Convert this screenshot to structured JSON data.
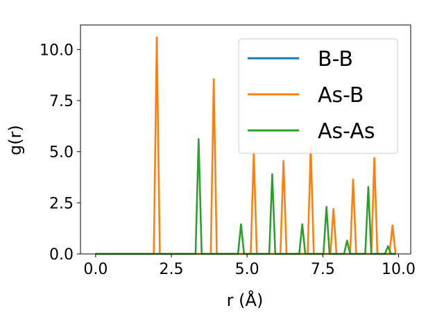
{
  "chart_data": {
    "type": "line",
    "title": "",
    "xlabel": "r (Å)",
    "ylabel": "g(r)",
    "xlim": [
      -0.5,
      10.4
    ],
    "ylim": [
      0,
      11.2
    ],
    "xticks": [
      0.0,
      2.5,
      5.0,
      7.5,
      10.0
    ],
    "xtick_labels": [
      "0.0",
      "2.5",
      "5.0",
      "7.5",
      "10.0"
    ],
    "yticks": [
      0.0,
      2.5,
      5.0,
      7.5,
      10.0
    ],
    "ytick_labels": [
      "0.0",
      "2.5",
      "5.0",
      "7.5",
      "10.0"
    ],
    "grid": false,
    "legend_position": "top-right",
    "series": [
      {
        "name": "B-B",
        "color": "#1f77b4",
        "x": [
          0.0,
          9.9
        ],
        "y": [
          0.0,
          0.0
        ]
      },
      {
        "name": "As-B",
        "color": "#ff7f0e",
        "x": [
          0.0,
          1.92,
          2.02,
          2.12,
          3.8,
          3.9,
          4.0,
          5.12,
          5.22,
          5.32,
          6.1,
          6.2,
          6.3,
          7.0,
          7.1,
          7.2,
          7.75,
          7.85,
          7.95,
          8.4,
          8.5,
          8.6,
          9.1,
          9.2,
          9.3,
          9.7,
          9.8,
          9.9
        ],
        "y": [
          0.0,
          0.0,
          10.6,
          0.0,
          0.0,
          8.55,
          0.0,
          0.0,
          4.95,
          0.0,
          0.0,
          4.55,
          0.0,
          0.0,
          5.25,
          0.0,
          0.0,
          2.2,
          0.0,
          0.0,
          3.65,
          0.0,
          0.0,
          4.7,
          0.0,
          0.0,
          1.4,
          0.0
        ]
      },
      {
        "name": "As-As",
        "color": "#2ca02c",
        "x": [
          0.0,
          3.3,
          3.4,
          3.5,
          4.7,
          4.8,
          4.9,
          5.73,
          5.83,
          5.93,
          6.72,
          6.82,
          6.92,
          7.52,
          7.62,
          7.72,
          8.2,
          8.3,
          8.4,
          8.9,
          9.0,
          9.1,
          9.55,
          9.65,
          9.75,
          9.9
        ],
        "y": [
          0.0,
          0.0,
          5.62,
          0.0,
          0.0,
          1.45,
          0.0,
          0.0,
          3.9,
          0.0,
          0.0,
          1.45,
          0.0,
          0.0,
          2.3,
          0.0,
          0.0,
          0.65,
          0.0,
          0.0,
          3.28,
          0.0,
          0.0,
          0.38,
          0.0,
          0.0
        ]
      }
    ]
  }
}
